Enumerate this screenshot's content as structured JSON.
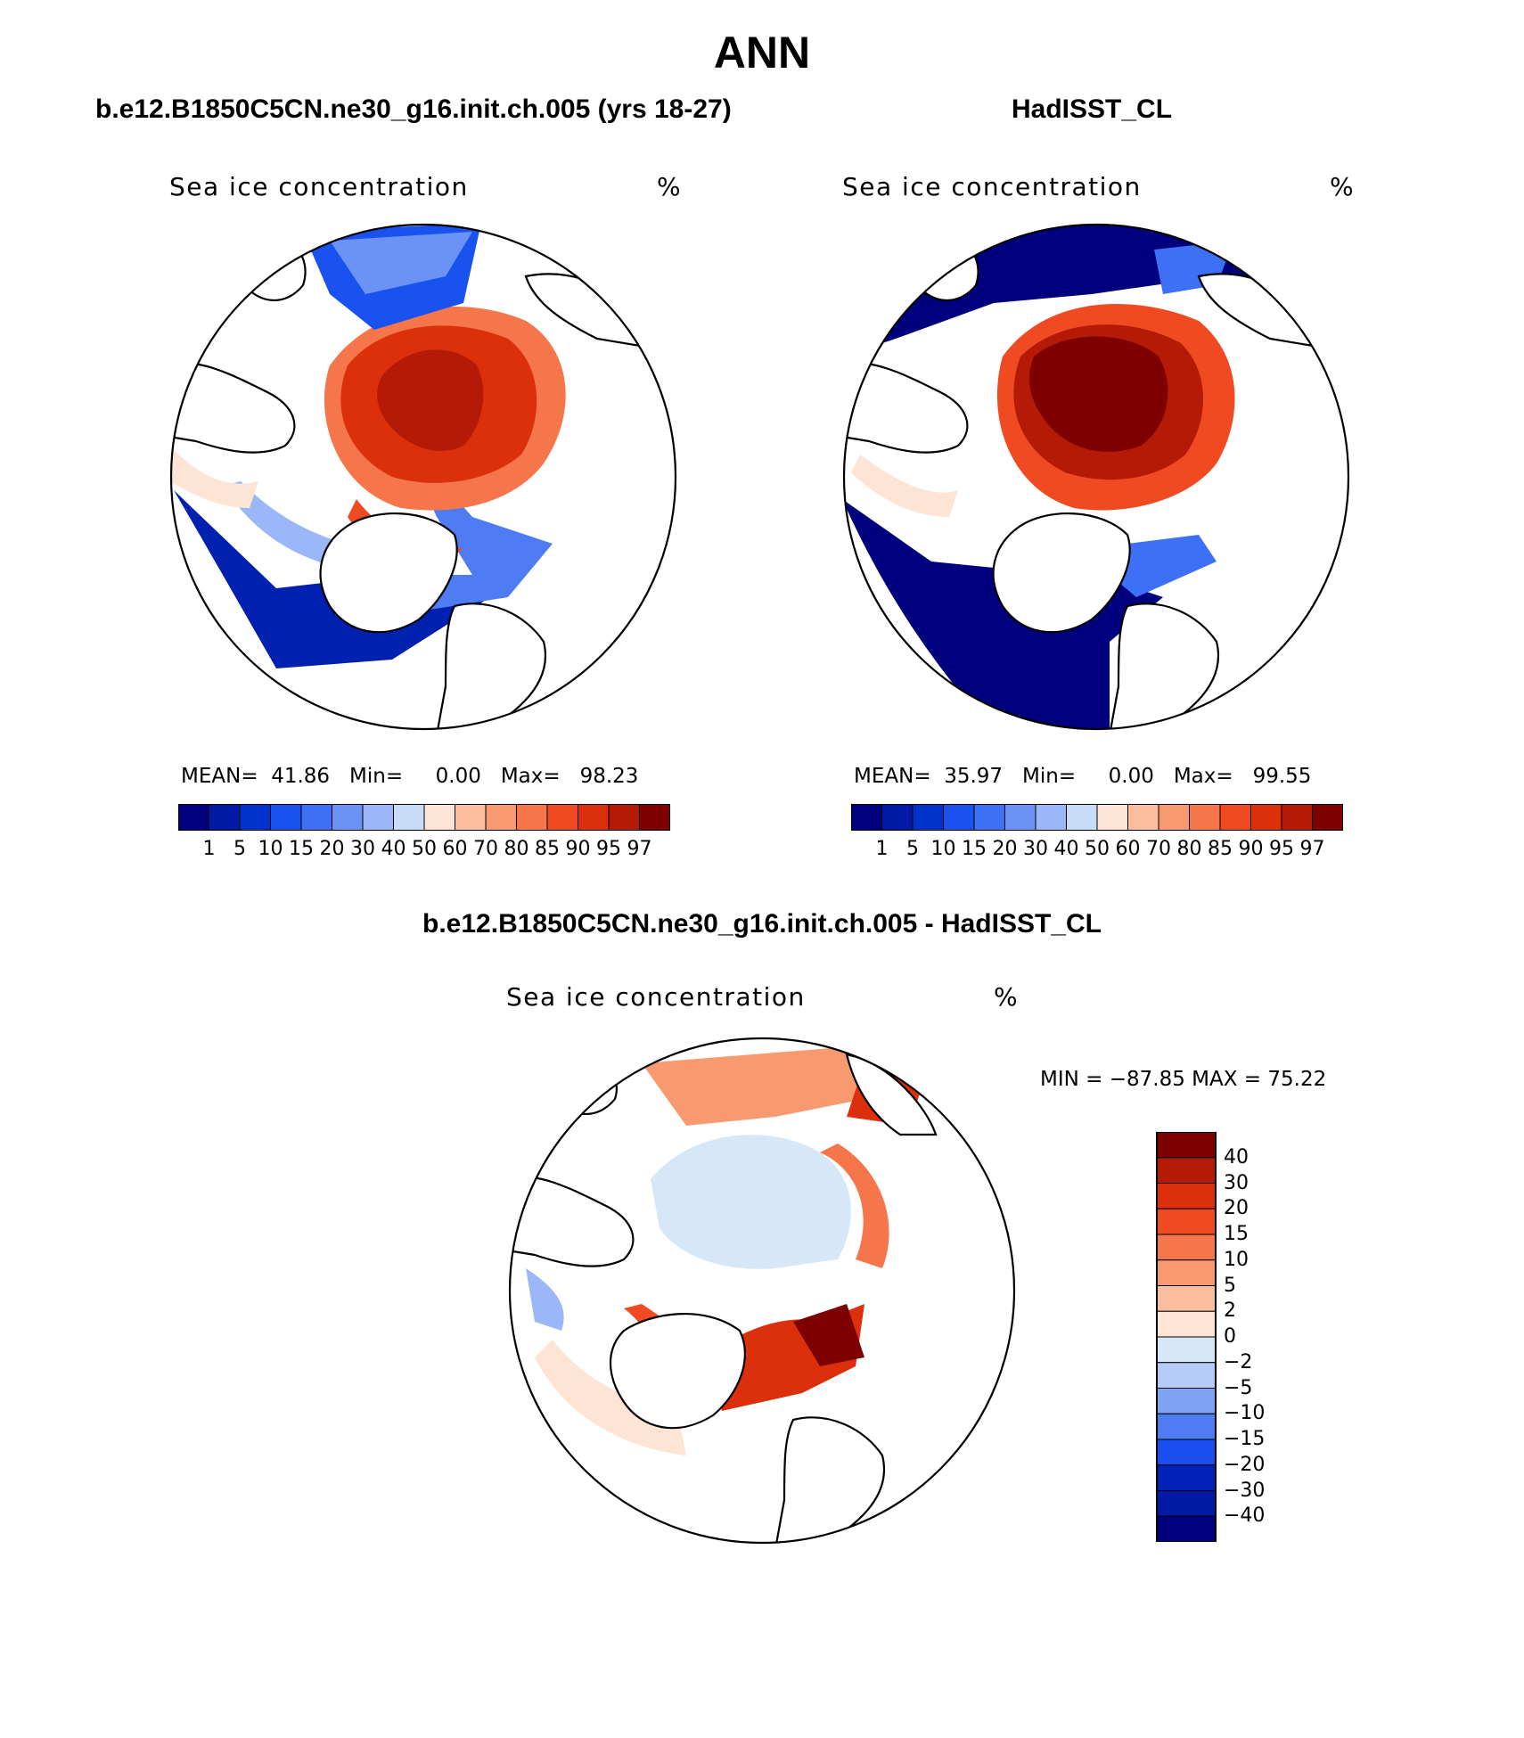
{
  "page_title": "ANN",
  "panels": [
    {
      "title": "b.e12.B1850C5CN.ne30_g16.init.ch.005 (yrs 18-27)",
      "field": "Sea ice concentration",
      "units": "%",
      "mean_label": "MEAN=",
      "mean": "41.86",
      "min_label": "Min=",
      "min": "0.00",
      "max_label": "Max=",
      "max": "98.23"
    },
    {
      "title": "HadISST_CL",
      "field": "Sea ice concentration",
      "units": "%",
      "mean_label": "MEAN=",
      "mean": "35.97",
      "min_label": "Min=",
      "min": "0.00",
      "max_label": "Max=",
      "max": "99.55"
    }
  ],
  "abs_colorbar": {
    "levels": [
      "1",
      "5",
      "10",
      "15",
      "20",
      "30",
      "40",
      "50",
      "60",
      "70",
      "80",
      "85",
      "90",
      "95",
      "97"
    ],
    "colors": [
      "#00007f",
      "#001aa6",
      "#0033cc",
      "#1a52f0",
      "#3d70f5",
      "#6b93f5",
      "#9bb7f7",
      "#c6dcf7",
      "#fde4d4",
      "#fbbfa0",
      "#f89a70",
      "#f5764a",
      "#f04a22",
      "#dc300d",
      "#b41a06",
      "#7f0000"
    ]
  },
  "diff_panel": {
    "title": "b.e12.B1850C5CN.ne30_g16.init.ch.005 - HadISST_CL",
    "field": "Sea ice concentration",
    "units": "%",
    "minmax_text": "MIN = −87.85 MAX =   75.22"
  },
  "diff_colorbar": {
    "levels": [
      "40",
      "30",
      "20",
      "15",
      "10",
      "5",
      "2",
      "0",
      "−2",
      "−5",
      "−10",
      "−15",
      "−20",
      "−30",
      "−40"
    ],
    "colors": [
      "#7f0000",
      "#b41a06",
      "#dc300d",
      "#f04a22",
      "#f5764a",
      "#f89a70",
      "#fbbfa0",
      "#fde4d4",
      "#d6e8f8",
      "#b4ccf7",
      "#7fa4f5",
      "#4f7cf2",
      "#1a4ef0",
      "#0022b8",
      "#001aa6",
      "#00007f"
    ]
  }
}
